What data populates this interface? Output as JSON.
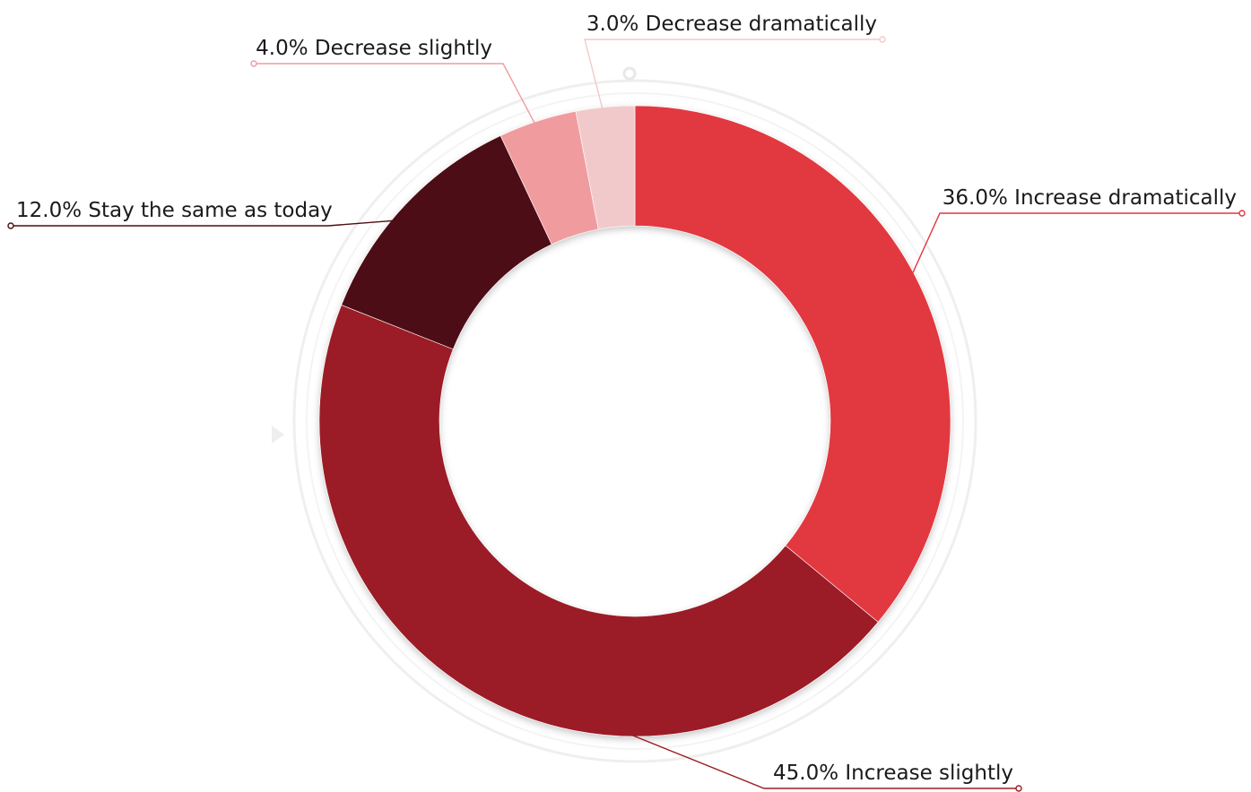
{
  "chart_data": {
    "type": "pie",
    "donut": true,
    "start_angle": "top (12 o'clock), clockwise",
    "slices": [
      {
        "label": "Increase dramatically",
        "value": 36.0,
        "display": "36.0% Increase dramatically",
        "color": "#E23740"
      },
      {
        "label": "Increase slightly",
        "value": 45.0,
        "display": "45.0% Increase slightly",
        "color": "#9B1D25"
      },
      {
        "label": "Stay the same as today",
        "value": 12.0,
        "display": "12.0% Stay the same as today",
        "color": "#4E0C12"
      },
      {
        "label": "Decrease slightly",
        "value": 4.0,
        "display": "4.0% Decrease slightly",
        "color": "#F09C9F"
      },
      {
        "label": "Decrease dramatically",
        "value": 3.0,
        "display": "3.0% Decrease dramatically",
        "color": "#F2C9CA"
      }
    ],
    "leader_line_colors": {
      "Increase dramatically": "#E23740",
      "Increase slightly": "#9B1D25",
      "Stay the same as today": "#4E0C12",
      "Decrease slightly": "#F09C9F",
      "Decrease dramatically": "#F2C9CA"
    },
    "legend": "none (labels attached to slices with leader lines)"
  }
}
